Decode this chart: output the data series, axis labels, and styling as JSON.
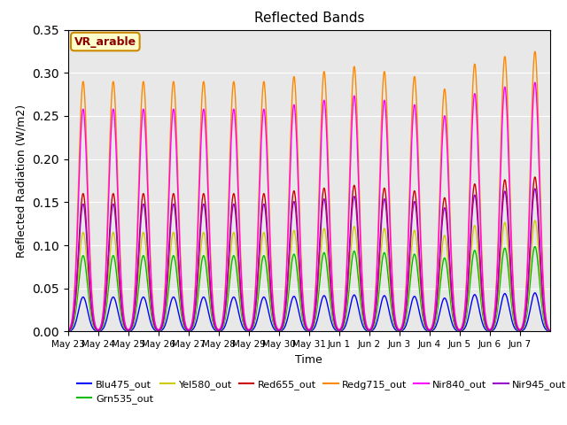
{
  "title": "Reflected Bands",
  "xlabel": "Time",
  "ylabel": "Reflected Radiation (W/m2)",
  "annotation": "VR_arable",
  "ylim": [
    0.0,
    0.35
  ],
  "background_color": "#e8e8e8",
  "series_order": [
    "Blu475_out",
    "Grn535_out",
    "Yel580_out",
    "Red655_out",
    "Redg715_out",
    "Nir840_out",
    "Nir945_out"
  ],
  "series": {
    "Blu475_out": {
      "color": "#0000ff",
      "peak": 0.04
    },
    "Grn535_out": {
      "color": "#00bb00",
      "peak": 0.088
    },
    "Yel580_out": {
      "color": "#cccc00",
      "peak": 0.115
    },
    "Red655_out": {
      "color": "#cc0000",
      "peak": 0.16
    },
    "Redg715_out": {
      "color": "#ff8800",
      "peak": 0.29
    },
    "Nir840_out": {
      "color": "#ff00ff",
      "peak": 0.258
    },
    "Nir945_out": {
      "color": "#9900cc",
      "peak": 0.148
    }
  },
  "n_days": 16,
  "tick_labels": [
    "May 23",
    "May 24",
    "May 25",
    "May 26",
    "May 27",
    "May 28",
    "May 29",
    "May 30",
    "May 31",
    "Jun 1",
    "Jun 2",
    "Jun 3",
    "Jun 4",
    "Jun 5",
    "Jun 6",
    "Jun 7"
  ],
  "peak_growth": [
    1.0,
    1.0,
    1.0,
    1.0,
    1.0,
    1.0,
    1.0,
    1.02,
    1.04,
    1.06,
    1.04,
    1.02,
    0.97,
    1.07,
    1.1,
    1.12
  ],
  "legend_ncol": 6,
  "legend_fontsize": 8,
  "title_fontsize": 11,
  "tick_fontsize": 7.5,
  "axis_label_fontsize": 9
}
